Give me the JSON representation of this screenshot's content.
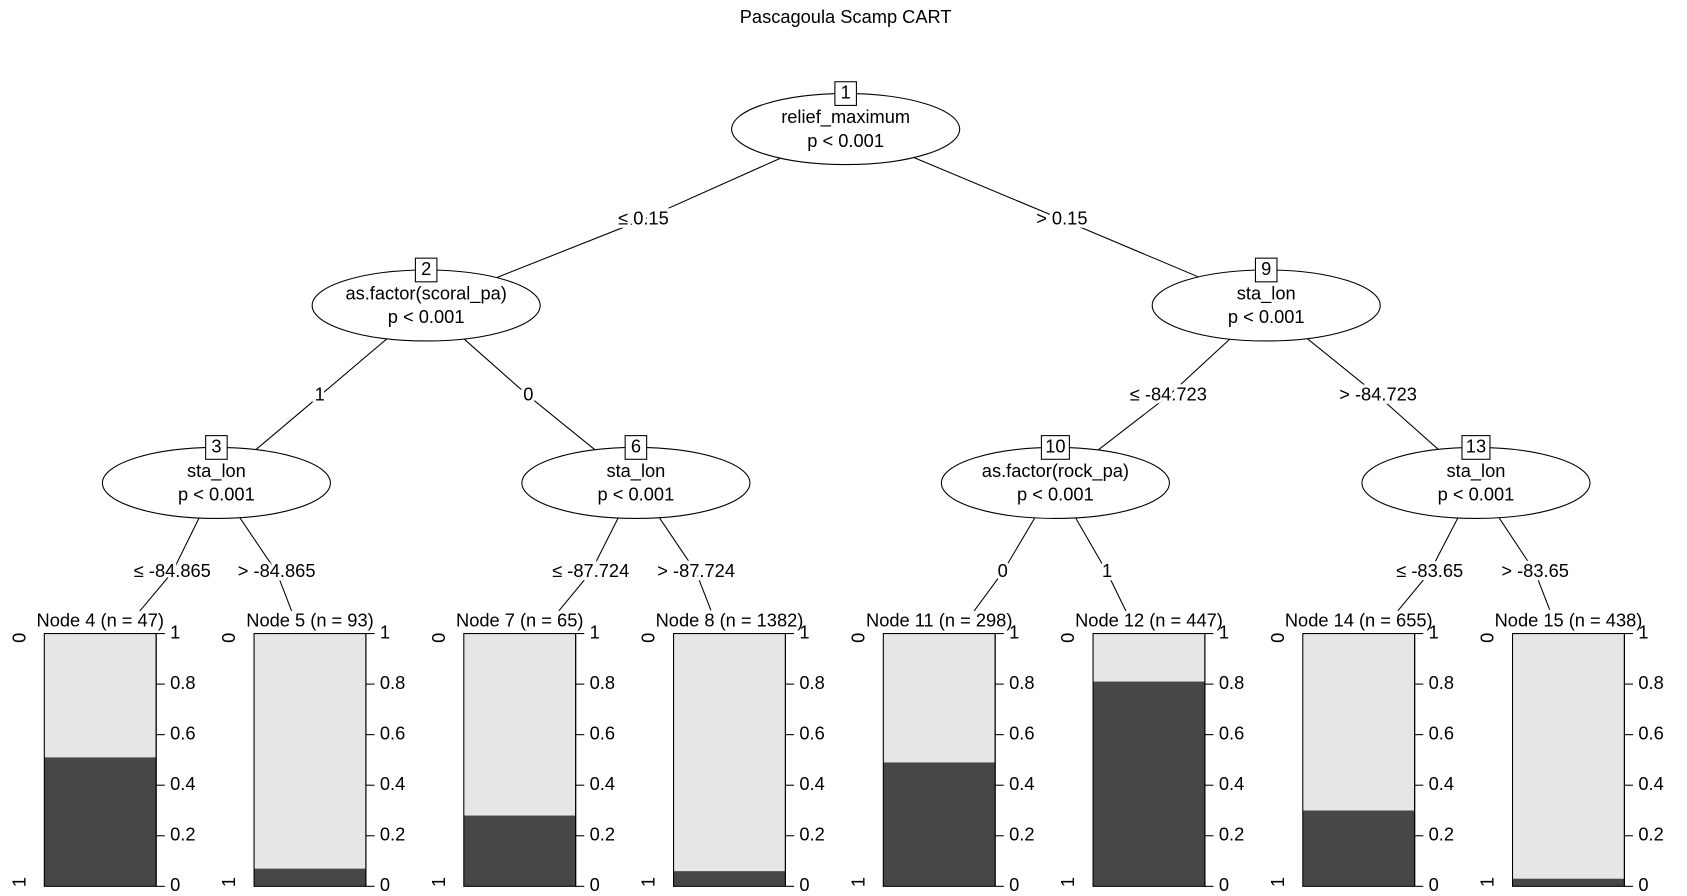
{
  "title": "Pascagoula Scamp CART",
  "inner_nodes": [
    {
      "id": "1",
      "variable": "relief_maximum",
      "p": "p < 0.001"
    },
    {
      "id": "2",
      "variable": "as.factor(scoral_pa)",
      "p": "p < 0.001",
      "edge_label": "≤ 0.15"
    },
    {
      "id": "3",
      "variable": "sta_lon",
      "p": "p < 0.001",
      "edge_label": "1"
    },
    {
      "id": "6",
      "variable": "sta_lon",
      "p": "p < 0.001",
      "edge_label": "0"
    },
    {
      "id": "9",
      "variable": "sta_lon",
      "p": "p < 0.001",
      "edge_label": "> 0.15"
    },
    {
      "id": "10",
      "variable": "as.factor(rock_pa)",
      "p": "p < 0.001",
      "edge_label": "≤ -84.723"
    },
    {
      "id": "13",
      "variable": "sta_lon",
      "p": "p < 0.001",
      "edge_label": "> -84.723"
    }
  ],
  "leaves": [
    {
      "label": "Node 4 (n = 47)",
      "edge_label": "≤ -84.865",
      "value": 0.51
    },
    {
      "label": "Node 5 (n = 93)",
      "edge_label": "> -84.865",
      "value": 0.07
    },
    {
      "label": "Node 7 (n = 65)",
      "edge_label": "≤ -87.724",
      "value": 0.28
    },
    {
      "label": "Node 8 (n = 1382)",
      "edge_label": "> -87.724",
      "value": 0.06
    },
    {
      "label": "Node 11 (n = 298)",
      "edge_label": "0",
      "value": 0.49
    },
    {
      "label": "Node 12 (n = 447)",
      "edge_label": "1",
      "value": 0.81
    },
    {
      "label": "Node 14 (n = 655)",
      "edge_label": "≤ -83.65",
      "value": 0.3
    },
    {
      "label": "Node 15 (n = 438)",
      "edge_label": "> -83.65",
      "value": 0.03
    }
  ],
  "leaf_axis": {
    "ylim": [
      0,
      1
    ],
    "ticks": [
      0,
      0.2,
      0.4,
      0.6,
      0.8,
      1
    ],
    "class_top": "0",
    "class_bottom": "1"
  }
}
